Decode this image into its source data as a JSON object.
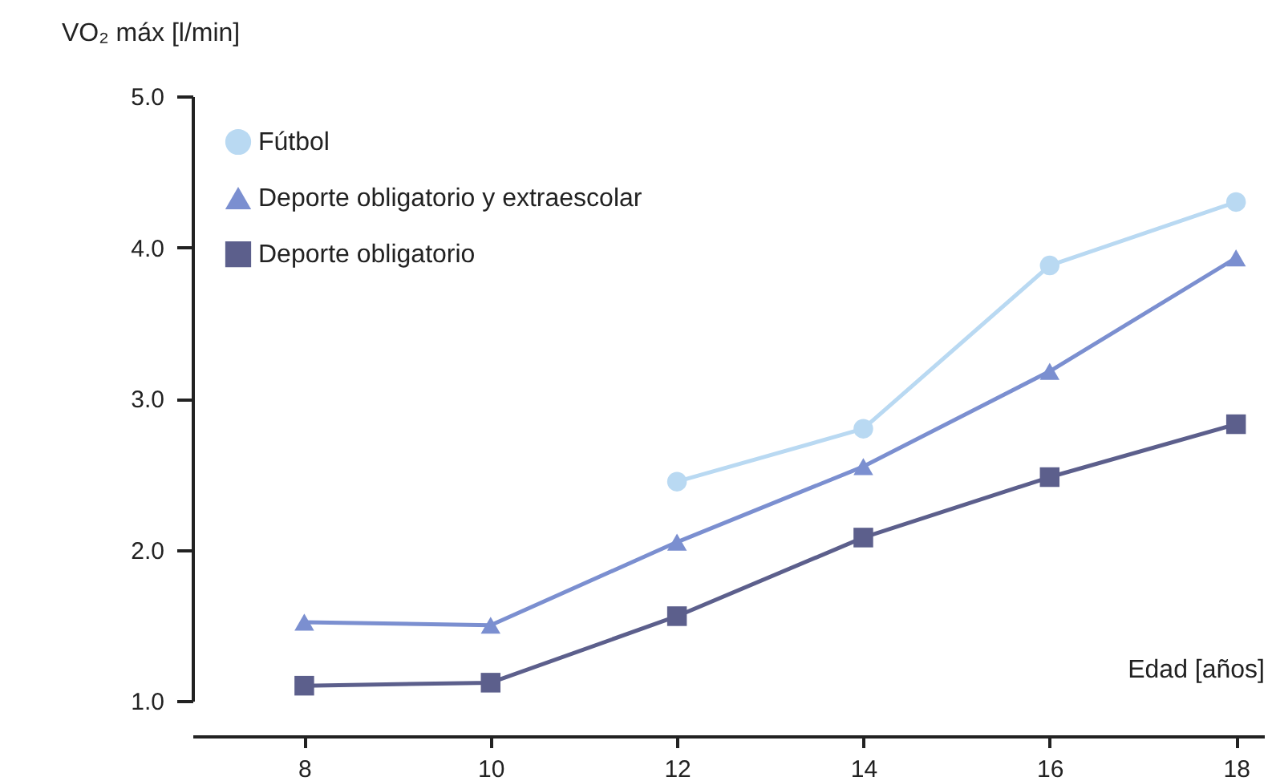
{
  "chart_data": {
    "type": "line",
    "xlabel": "Edad [años]",
    "ylabel": "VO₂ máx [l/min]",
    "x": [
      8,
      10,
      12,
      14,
      16,
      18
    ],
    "series": [
      {
        "name": "Fútbol",
        "color": "#b9d9f2",
        "marker": "circle",
        "values": [
          null,
          null,
          2.45,
          2.8,
          3.88,
          4.3
        ]
      },
      {
        "name": "Deporte obligatorio y extraescolar",
        "color": "#7b8fd0",
        "marker": "triangle",
        "values": [
          1.52,
          1.5,
          2.05,
          2.55,
          3.18,
          3.93
        ]
      },
      {
        "name": "Deporte obligatorio",
        "color": "#5c5f8c",
        "marker": "square",
        "values": [
          1.1,
          1.12,
          1.56,
          2.08,
          2.48,
          2.83
        ]
      }
    ],
    "xlim": [
      6.8,
      18.3
    ],
    "xticks": [
      8,
      10,
      12,
      14,
      16,
      18
    ],
    "ylim": [
      1,
      5
    ],
    "yticks": [
      {
        "value": 1,
        "label": "1.0"
      },
      {
        "value": 2,
        "label": "2.0"
      },
      {
        "value": 3,
        "label": "3.0"
      },
      {
        "value": 4,
        "label": "4.0"
      },
      {
        "value": 5,
        "label": "5.0"
      }
    ],
    "grid": false,
    "legend": "top left",
    "line_style": "solid"
  }
}
